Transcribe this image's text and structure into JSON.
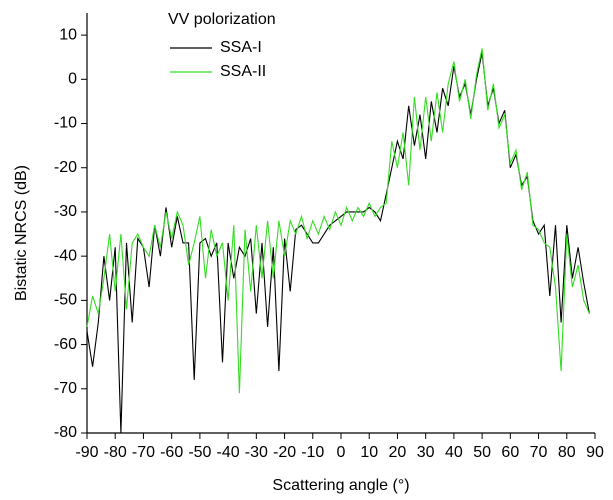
{
  "chart_data": {
    "type": "line",
    "xlabel": "Scattering angle (°)",
    "ylabel": "Bistatic NRCS (dB)",
    "legend_title": "VV polorization",
    "legend": "upper-left",
    "xlim": [
      -90,
      90
    ],
    "ylim": [
      -80,
      15
    ],
    "xticks": [
      -90,
      -80,
      -70,
      -60,
      -50,
      -40,
      -30,
      -20,
      -10,
      0,
      10,
      20,
      30,
      40,
      50,
      60,
      70,
      80,
      90
    ],
    "yticks": [
      -80,
      -70,
      -60,
      -50,
      -40,
      -30,
      -20,
      -10,
      0,
      10
    ],
    "x": [
      -90,
      -88,
      -86,
      -84,
      -82,
      -80,
      -78,
      -76,
      -74,
      -72,
      -70,
      -68,
      -66,
      -64,
      -62,
      -60,
      -58,
      -56,
      -54,
      -52,
      -50,
      -48,
      -46,
      -44,
      -42,
      -40,
      -38,
      -36,
      -34,
      -32,
      -30,
      -28,
      -26,
      -24,
      -22,
      -20,
      -18,
      -16,
      -14,
      -12,
      -10,
      -8,
      -6,
      -4,
      -2,
      0,
      2,
      4,
      6,
      8,
      10,
      12,
      14,
      16,
      18,
      20,
      22,
      24,
      26,
      28,
      30,
      32,
      34,
      36,
      38,
      40,
      42,
      44,
      46,
      48,
      50,
      52,
      54,
      56,
      58,
      60,
      62,
      64,
      66,
      68,
      70,
      72,
      74,
      76,
      78,
      80,
      82,
      84,
      86,
      88
    ],
    "series": [
      {
        "name": "SSA-I",
        "color": "#000000",
        "values": [
          -57,
          -65,
          -55,
          -40,
          -50,
          -38,
          -80,
          -37,
          -55,
          -36,
          -38,
          -47,
          -33,
          -40,
          -29,
          -38,
          -31,
          -37,
          -37,
          -68,
          -37,
          -36,
          -40,
          -37,
          -64,
          -37,
          -45,
          -38,
          -40,
          -36,
          -53,
          -37,
          -56,
          -38,
          -66,
          -36,
          -48,
          -34,
          -33,
          -35,
          -37,
          -37,
          -35,
          -33,
          -32,
          -31,
          -30,
          -30,
          -30,
          -30,
          -29,
          -30,
          -32,
          -26,
          -20,
          -14,
          -18,
          -6,
          -15,
          -8,
          -18,
          -5,
          -12,
          -2,
          -6,
          3,
          -4,
          -1,
          -8,
          0,
          6,
          -6,
          -2,
          -10,
          -7,
          -20,
          -17,
          -24,
          -22,
          -32,
          -35,
          -33,
          -49,
          -33,
          -55,
          -33,
          -45,
          -38,
          -46,
          -53
        ]
      },
      {
        "name": "SSA-II",
        "color": "#33dd22",
        "values": [
          -56,
          -49,
          -53,
          -45,
          -35,
          -48,
          -35,
          -52,
          -37,
          -35,
          -38,
          -40,
          -33,
          -38,
          -30,
          -36,
          -30,
          -33,
          -42,
          -37,
          -31,
          -45,
          -34,
          -40,
          -37,
          -50,
          -33,
          -71,
          -34,
          -48,
          -33,
          -45,
          -32,
          -45,
          -32,
          -40,
          -32,
          -35,
          -31,
          -36,
          -32,
          -35,
          -31,
          -34,
          -30,
          -33,
          -29,
          -32,
          -29,
          -31,
          -28,
          -31,
          -29,
          -28,
          -14,
          -20,
          -12,
          -24,
          -4,
          -16,
          -4,
          -14,
          -3,
          -12,
          -1,
          4,
          -5,
          0,
          -9,
          1,
          7,
          -7,
          -1,
          -11,
          -8,
          -19,
          -16,
          -25,
          -21,
          -33,
          -34,
          -37,
          -38,
          -47,
          -66,
          -35,
          -47,
          -42,
          -50,
          -53
        ]
      }
    ]
  }
}
